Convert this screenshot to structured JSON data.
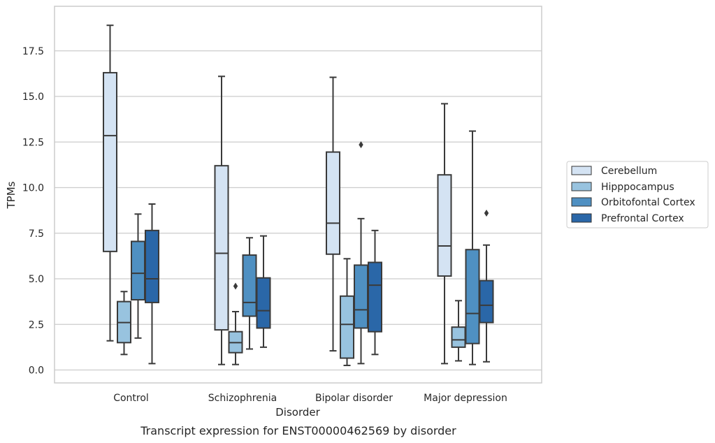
{
  "chart_data": {
    "type": "box",
    "title": "",
    "caption": "Transcript expression for ENST00000462569 by disorder",
    "xlabel": "Disorder",
    "ylabel": "TPMs",
    "ylim": [
      -0.7,
      19.9
    ],
    "yticks": [
      "0.0",
      "2.5",
      "5.0",
      "7.5",
      "10.0",
      "12.5",
      "15.0",
      "17.5"
    ],
    "ytick_values": [
      0,
      2.5,
      5.0,
      7.5,
      10.0,
      12.5,
      15.0,
      17.5
    ],
    "grid": true,
    "legend_position": "right",
    "categories": [
      "Control",
      "Schizophrenia",
      "Bipolar disorder",
      "Major depression"
    ],
    "series": [
      {
        "name": "Cerebellum",
        "color": "#d4e3f3",
        "boxes": [
          {
            "whisker_low": 1.6,
            "q1": 6.5,
            "median": 12.85,
            "q3": 16.3,
            "whisker_high": 18.9,
            "outliers": []
          },
          {
            "whisker_low": 0.3,
            "q1": 2.2,
            "median": 6.4,
            "q3": 11.2,
            "whisker_high": 16.1,
            "outliers": []
          },
          {
            "whisker_low": 1.05,
            "q1": 6.35,
            "median": 8.05,
            "q3": 11.95,
            "whisker_high": 16.05,
            "outliers": []
          },
          {
            "whisker_low": 0.35,
            "q1": 5.15,
            "median": 6.8,
            "q3": 10.7,
            "whisker_high": 14.6,
            "outliers": []
          }
        ]
      },
      {
        "name": "Hipppocampus",
        "color": "#98c3df",
        "boxes": [
          {
            "whisker_low": 0.85,
            "q1": 1.5,
            "median": 2.6,
            "q3": 3.75,
            "whisker_high": 4.3,
            "outliers": []
          },
          {
            "whisker_low": 0.3,
            "q1": 0.95,
            "median": 1.5,
            "q3": 2.1,
            "whisker_high": 3.2,
            "outliers": [
              4.6
            ]
          },
          {
            "whisker_low": 0.25,
            "q1": 0.65,
            "median": 2.5,
            "q3": 4.05,
            "whisker_high": 6.1,
            "outliers": []
          },
          {
            "whisker_low": 0.5,
            "q1": 1.25,
            "median": 1.65,
            "q3": 2.35,
            "whisker_high": 3.8,
            "outliers": []
          }
        ]
      },
      {
        "name": "Orbitofontal Cortex",
        "color": "#4f90c2",
        "boxes": [
          {
            "whisker_low": 1.75,
            "q1": 3.85,
            "median": 5.3,
            "q3": 7.05,
            "whisker_high": 8.55,
            "outliers": []
          },
          {
            "whisker_low": 1.15,
            "q1": 2.95,
            "median": 3.7,
            "q3": 6.3,
            "whisker_high": 7.25,
            "outliers": []
          },
          {
            "whisker_low": 0.35,
            "q1": 2.3,
            "median": 3.3,
            "q3": 5.75,
            "whisker_high": 8.3,
            "outliers": [
              12.35
            ]
          },
          {
            "whisker_low": 0.3,
            "q1": 1.45,
            "median": 3.1,
            "q3": 6.6,
            "whisker_high": 13.1,
            "outliers": []
          }
        ]
      },
      {
        "name": "Prefrontal Cortex",
        "color": "#2a67a8",
        "boxes": [
          {
            "whisker_low": 0.35,
            "q1": 3.7,
            "median": 5.0,
            "q3": 7.65,
            "whisker_high": 9.1,
            "outliers": []
          },
          {
            "whisker_low": 1.25,
            "q1": 2.3,
            "median": 3.25,
            "q3": 5.05,
            "whisker_high": 7.35,
            "outliers": []
          },
          {
            "whisker_low": 0.85,
            "q1": 2.1,
            "median": 4.65,
            "q3": 5.9,
            "whisker_high": 7.65,
            "outliers": []
          },
          {
            "whisker_low": 0.45,
            "q1": 2.6,
            "median": 3.55,
            "q3": 4.9,
            "whisker_high": 6.85,
            "outliers": [
              8.6
            ]
          }
        ]
      }
    ]
  }
}
